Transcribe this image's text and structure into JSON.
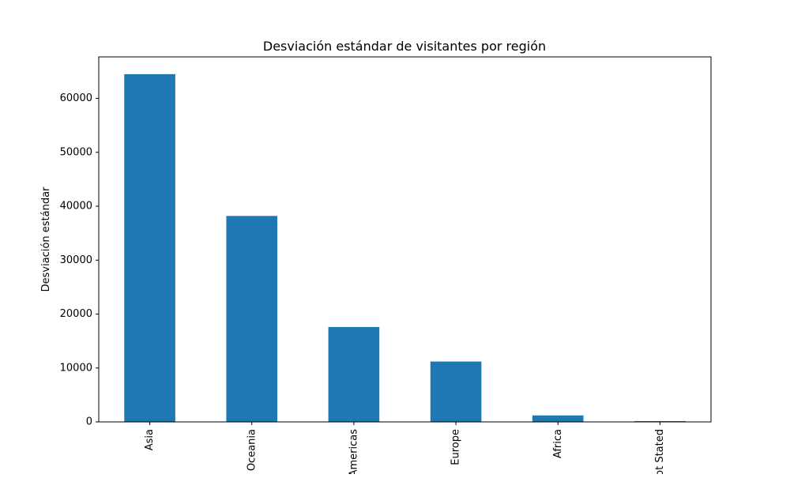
{
  "chart_data": {
    "type": "bar",
    "title": "Desviación estándar de visitantes por región",
    "xlabel": "",
    "ylabel": "Desviación estándar",
    "categories": [
      "Asia",
      "Oceania",
      "Americas",
      "Europe",
      "Africa",
      "Not Stated"
    ],
    "values": [
      64500,
      38200,
      17600,
      11200,
      1200,
      150
    ],
    "ylim": [
      0,
      67700
    ],
    "yticks": [
      0,
      10000,
      20000,
      30000,
      40000,
      50000,
      60000
    ],
    "ytick_labels": [
      "0",
      "10000",
      "20000",
      "30000",
      "40000",
      "50000",
      "60000"
    ],
    "grid": false,
    "legend": "none",
    "bar_color": "#1f77b4"
  }
}
